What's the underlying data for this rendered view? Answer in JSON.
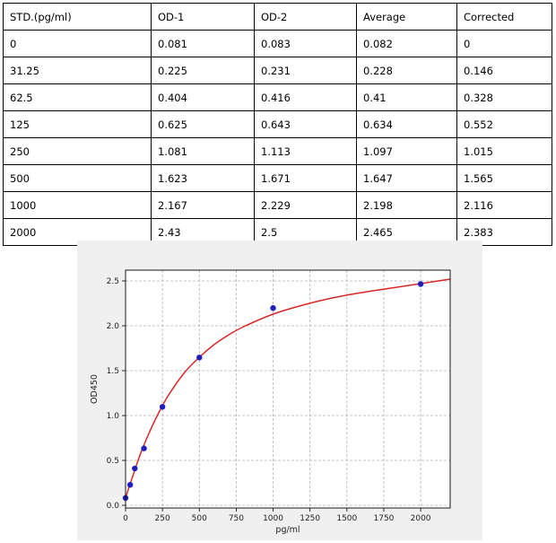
{
  "table": {
    "headers": [
      "STD.(pg/ml)",
      "OD-1",
      "OD-2",
      "Average",
      "Corrected"
    ],
    "rows": [
      [
        "0",
        "0.081",
        "0.083",
        "0.082",
        "0"
      ],
      [
        "31.25",
        "0.225",
        "0.231",
        "0.228",
        "0.146"
      ],
      [
        "62.5",
        "0.404",
        "0.416",
        "0.41",
        "0.328"
      ],
      [
        "125",
        "0.625",
        "0.643",
        "0.634",
        "0.552"
      ],
      [
        "250",
        "1.081",
        "1.113",
        "1.097",
        "1.015"
      ],
      [
        "500",
        "1.623",
        "1.671",
        "1.647",
        "1.565"
      ],
      [
        "1000",
        "2.167",
        "2.229",
        "2.198",
        "2.116"
      ],
      [
        "2000",
        "2.43",
        "2.5",
        "2.465",
        "2.383"
      ]
    ]
  },
  "chart_data": {
    "type": "scatter",
    "title": "",
    "xlabel": "pg/ml",
    "ylabel": "OD450",
    "xlim": [
      0,
      2200
    ],
    "ylim": [
      -0.03,
      2.62
    ],
    "xticks": [
      0,
      250,
      500,
      750,
      1000,
      1250,
      1500,
      1750,
      2000
    ],
    "yticks": [
      0.0,
      0.5,
      1.0,
      1.5,
      2.0,
      2.5
    ],
    "xtick_labels": [
      "0",
      "250",
      "500",
      "750",
      "1000",
      "1250",
      "1500",
      "1750",
      "2000"
    ],
    "ytick_labels": [
      "0.0",
      "0.5",
      "1.0",
      "1.5",
      "2.0",
      "2.5"
    ],
    "grid": true,
    "series": [
      {
        "kind": "points",
        "x": [
          0,
          31.25,
          62.5,
          125,
          250,
          500,
          1000,
          2000
        ],
        "y": [
          0.082,
          0.228,
          0.41,
          0.634,
          1.097,
          1.647,
          2.198,
          2.465
        ],
        "color": "#1f1fbf"
      },
      {
        "kind": "fit-curve",
        "x": [
          0,
          25,
          50,
          100,
          150,
          200,
          250,
          300,
          400,
          500,
          600,
          700,
          800,
          1000,
          1200,
          1400,
          1600,
          1800,
          2000,
          2200
        ],
        "y": [
          0.08,
          0.21,
          0.33,
          0.57,
          0.77,
          0.95,
          1.11,
          1.25,
          1.48,
          1.65,
          1.79,
          1.9,
          1.99,
          2.13,
          2.23,
          2.31,
          2.37,
          2.42,
          2.47,
          2.52
        ],
        "color": "#d62728"
      }
    ]
  }
}
